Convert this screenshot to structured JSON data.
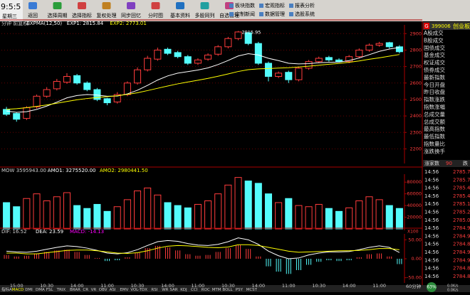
{
  "toolbar": {
    "clock": "9:5:5",
    "weekday": "星期三",
    "buttons": [
      "返回",
      "选择周期",
      "选择指标",
      "复权处理",
      "同步回忆",
      "分时图",
      "基本资料",
      "多股同列",
      "自选管理"
    ],
    "menu": [
      "板块指数",
      "定制新闻",
      "宏观指标",
      "数据管理",
      "报表分析",
      "选股系统"
    ]
  },
  "chart_data": [
    {
      "type": "candlestick",
      "header": [
        "分钟 前复权)",
        "EXPMA(12,50)",
        "EXP1: 2815.84",
        "EXP2: 2773.01"
      ],
      "categories": [
        null,
        "15:00",
        null,
        null,
        "10:30",
        null,
        null,
        "14:00",
        null,
        null,
        "11:00",
        null,
        null,
        "10:30",
        null,
        null,
        "14:00",
        null,
        null,
        "11:00",
        null,
        null,
        "10:30",
        null,
        null,
        "14:00",
        null,
        null,
        "11:00",
        null,
        null,
        "10:30",
        null,
        null,
        "14:00",
        null,
        null,
        "11:00",
        null,
        null
      ],
      "open": [
        2440,
        2415,
        2385,
        2455,
        2520,
        2565,
        2605,
        2645,
        2600,
        2560,
        2505,
        2485,
        2530,
        2600,
        2680,
        2745,
        2805,
        2785,
        2760,
        2720,
        2745,
        2775,
        2820,
        2870,
        2905,
        2840,
        2720,
        2640,
        2665,
        2620,
        2690,
        2730,
        2755,
        2740,
        2730,
        2760,
        2800,
        2830,
        2845,
        2820
      ],
      "high": [
        2455,
        2420,
        2460,
        2530,
        2575,
        2625,
        2660,
        2655,
        2610,
        2570,
        2510,
        2545,
        2610,
        2695,
        2765,
        2815,
        2815,
        2795,
        2770,
        2750,
        2780,
        2830,
        2880,
        2915.95,
        2910,
        2850,
        2730,
        2670,
        2675,
        2700,
        2740,
        2760,
        2765,
        2750,
        2770,
        2810,
        2840,
        2850,
        2850,
        2830
      ],
      "low": [
        2400,
        2365,
        2375,
        2445,
        2510,
        2555,
        2595,
        2590,
        2550,
        2490,
        2465,
        2475,
        2520,
        2590,
        2670,
        2735,
        2770,
        2750,
        2710,
        2710,
        2735,
        2765,
        2810,
        2860,
        2830,
        2710,
        2610,
        2630,
        2600,
        2610,
        2680,
        2720,
        2730,
        2725,
        2720,
        2750,
        2790,
        2820,
        2810,
        2780
      ],
      "close": [
        2410,
        2380,
        2450,
        2520,
        2560,
        2610,
        2640,
        2600,
        2560,
        2500,
        2480,
        2530,
        2600,
        2680,
        2750,
        2800,
        2780,
        2760,
        2720,
        2740,
        2770,
        2820,
        2870,
        2910,
        2840,
        2720,
        2640,
        2660,
        2620,
        2690,
        2730,
        2750,
        2740,
        2730,
        2760,
        2800,
        2830,
        2840,
        2820,
        2790
      ],
      "up_color": "#ff3c3c",
      "down_color": "#54fcfc",
      "series": [
        {
          "name": "EXP1",
          "color": "#ffffff",
          "values": [
            2430,
            2422,
            2426,
            2440,
            2460,
            2484,
            2510,
            2524,
            2530,
            2527,
            2520,
            2521,
            2534,
            2556,
            2586,
            2618,
            2643,
            2660,
            2669,
            2679,
            2692,
            2712,
            2737,
            2764,
            2778,
            2770,
            2750,
            2736,
            2720,
            2716,
            2718,
            2723,
            2726,
            2727,
            2736,
            2752,
            2772,
            2792,
            2806,
            2815.84
          ]
        },
        {
          "name": "EXP2",
          "color": "#ffff00",
          "values": [
            2440,
            2444,
            2450,
            2458,
            2467,
            2477,
            2488,
            2498,
            2506,
            2512,
            2517,
            2523,
            2531,
            2541,
            2554,
            2568,
            2582,
            2595,
            2606,
            2617,
            2628,
            2641,
            2655,
            2670,
            2681,
            2686,
            2688,
            2691,
            2693,
            2697,
            2702,
            2708,
            2714,
            2719,
            2726,
            2734,
            2744,
            2753,
            2763,
            2773.01
          ]
        }
      ],
      "annotations": [
        "2915.95"
      ],
      "ylim": [
        2120,
        2940
      ],
      "yticks": [
        2200,
        2300,
        2400,
        2500,
        2600,
        2700,
        2800,
        2900
      ],
      "grid": true
    },
    {
      "type": "bar",
      "header": [
        "MOW 3595943.00",
        "AMO1: 3275520.00",
        "AMO2: 2980441.50"
      ],
      "unit": "X100",
      "values": [
        45000,
        38000,
        52000,
        60000,
        48000,
        55000,
        62000,
        40000,
        35000,
        42000,
        30000,
        38000,
        50000,
        65000,
        70000,
        58000,
        45000,
        40000,
        36000,
        42000,
        48000,
        60000,
        75000,
        88000,
        82000,
        78000,
        60000,
        45000,
        52000,
        40000,
        38000,
        42000,
        35000,
        30000,
        36000,
        48000,
        55000,
        50000,
        40000,
        35000
      ],
      "ylim": [
        0,
        90000
      ],
      "yticks": [
        20000,
        40000,
        60000,
        80000
      ]
    },
    {
      "type": "macd",
      "header": [
        "DIF: 16.52",
        "DEA: 23.59",
        "MACD: -14.13"
      ],
      "values": [
        10,
        6,
        8,
        14,
        18,
        22,
        24,
        18,
        10,
        2,
        -6,
        -4,
        4,
        16,
        28,
        34,
        30,
        22,
        12,
        8,
        10,
        18,
        28,
        36,
        26,
        6,
        -20,
        -34,
        -40,
        -30,
        -16,
        -8,
        -4,
        -6,
        -4,
        4,
        12,
        14,
        6,
        -14.13
      ],
      "series": [
        {
          "name": "DIF",
          "color": "#ffffff",
          "values": [
            20,
            18,
            17,
            20,
            25,
            30,
            34,
            32,
            28,
            22,
            15,
            13,
            16,
            24,
            35,
            45,
            48,
            46,
            40,
            36,
            35,
            38,
            45,
            55,
            50,
            38,
            20,
            8,
            0,
            2,
            10,
            15,
            18,
            18,
            19,
            24,
            30,
            34,
            30,
            16.52
          ]
        },
        {
          "name": "DEA",
          "color": "#ffff00",
          "values": [
            15,
            15,
            13,
            13,
            16,
            19,
            22,
            23,
            23,
            21,
            18,
            15,
            14,
            16,
            21,
            28,
            33,
            35,
            34,
            32,
            30,
            29,
            31,
            37,
            37,
            35,
            30,
            25,
            20,
            17,
            18,
            19,
            20,
            21,
            21,
            22,
            24,
            27,
            27,
            23.59
          ]
        }
      ],
      "up_color": "#ff3c3c",
      "down_color": "#54fcfc",
      "ylim": [
        -60,
        60
      ],
      "yticks": [
        {
          "value": 50,
          "label": "50.00"
        },
        {
          "value": 0,
          "label": "0.00"
        },
        {
          "value": -50,
          "label": "-50.00"
        }
      ]
    }
  ],
  "panel": {
    "code": "399006",
    "name": "创业板",
    "badge": "G",
    "fields": [
      "A股成交",
      "B股成交",
      "国债成交",
      "基金成交",
      "权证成交",
      "债券成交",
      "最新指数",
      "今日开盘",
      "昨日收盘",
      "指数涨跌",
      "指数涨幅",
      "总成交量",
      "总成交额",
      "最高指数",
      "最低指数",
      "指数量比",
      "涨跌换手"
    ],
    "breadth": [
      "涨家数",
      "90",
      "跌"
    ],
    "trades": [
      [
        "14:56",
        "2785.70"
      ],
      [
        "14:56",
        "2785.70"
      ],
      [
        "14:56",
        "2785.41"
      ],
      [
        "14:56",
        "2785.46"
      ],
      [
        "14:56",
        "2785.14"
      ],
      [
        "14:56",
        "2785.22"
      ],
      [
        "14:56",
        "2785.00"
      ],
      [
        "14:56",
        "2784.92"
      ],
      [
        "14:56",
        "2784.91"
      ],
      [
        "14:56",
        "2784.88"
      ],
      [
        "14:56",
        "2784.92"
      ],
      [
        "14:56",
        "2784.90"
      ],
      [
        "14:56",
        "2784.82"
      ],
      [
        "14:56",
        "2784.80"
      ]
    ]
  },
  "footer": {
    "tabs": [
      "指标A",
      "MACD",
      "DMI",
      "DMA",
      "FSL",
      "TRIX",
      "BRAR",
      "CR",
      "VR",
      "OBV",
      "ASI",
      "EMV",
      "VOL-TDX",
      "RSI",
      "WR",
      "SAR",
      "KDJ",
      "CCI",
      "ROC",
      "MTM",
      "BOLL",
      "PSY",
      "MCST"
    ],
    "period": "60分钟",
    "status": "63%",
    "speed": [
      "0.0K/s",
      "0.0K/s"
    ]
  }
}
